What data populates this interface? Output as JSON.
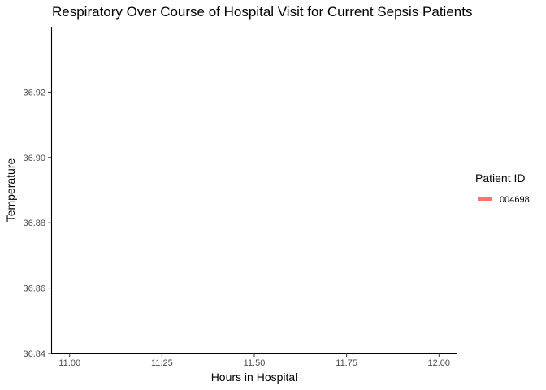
{
  "chart_data": {
    "type": "line",
    "title": "Respiratory Over Course of Hospital Visit for Current Sepsis Patients",
    "xlabel": "Hours in Hospital",
    "ylabel": "Temperature",
    "xlim": [
      10.95,
      12.05
    ],
    "ylim": [
      36.84,
      36.94
    ],
    "x_ticks": [
      "11.00",
      "11.25",
      "11.50",
      "11.75",
      "12.00"
    ],
    "y_ticks": [
      "36.84",
      "36.86",
      "36.88",
      "36.90",
      "36.92"
    ],
    "grid": false,
    "legend": {
      "title": "Patient ID",
      "position": "right"
    },
    "series": [
      {
        "name": "004698",
        "color": "#F8766D",
        "x": [],
        "y": []
      }
    ]
  }
}
